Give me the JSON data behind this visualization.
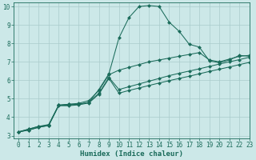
{
  "title": "",
  "xlabel": "Humidex (Indice chaleur)",
  "ylabel": "",
  "xlim": [
    -0.5,
    23
  ],
  "ylim": [
    2.85,
    10.2
  ],
  "xticks": [
    0,
    1,
    2,
    3,
    4,
    5,
    6,
    7,
    8,
    9,
    10,
    11,
    12,
    13,
    14,
    15,
    16,
    17,
    18,
    19,
    20,
    21,
    22,
    23
  ],
  "yticks": [
    3,
    4,
    5,
    6,
    7,
    8,
    9,
    10
  ],
  "background_color": "#cce8e8",
  "grid_color": "#aacccc",
  "line_color": "#1a6b5a",
  "lines": [
    {
      "x": [
        0,
        1,
        2,
        3,
        4,
        5,
        6,
        7,
        8,
        9,
        10,
        11,
        12,
        13,
        14,
        15,
        16,
        17,
        18,
        19,
        20,
        21,
        22,
        23
      ],
      "y": [
        3.2,
        3.35,
        3.5,
        3.55,
        4.65,
        4.7,
        4.7,
        4.8,
        5.5,
        6.35,
        8.3,
        9.4,
        10.0,
        10.05,
        10.0,
        9.15,
        8.65,
        7.95,
        7.8,
        7.05,
        6.95,
        7.1,
        7.35,
        7.3
      ],
      "marker": "D",
      "markersize": 2.0
    },
    {
      "x": [
        0,
        1,
        2,
        3,
        4,
        5,
        6,
        7,
        8,
        9,
        10,
        11,
        12,
        13,
        14,
        15,
        16,
        17,
        18,
        19,
        20,
        21,
        22,
        23
      ],
      "y": [
        3.2,
        3.35,
        3.5,
        3.6,
        4.65,
        4.7,
        4.75,
        4.9,
        5.45,
        6.3,
        6.55,
        6.7,
        6.85,
        7.0,
        7.1,
        7.2,
        7.3,
        7.4,
        7.5,
        7.1,
        7.0,
        7.15,
        7.3,
        7.35
      ],
      "marker": "D",
      "markersize": 2.0
    },
    {
      "x": [
        0,
        1,
        2,
        3,
        4,
        5,
        6,
        7,
        8,
        9,
        10,
        11,
        12,
        13,
        14,
        15,
        16,
        17,
        18,
        19,
        20,
        21,
        22,
        23
      ],
      "y": [
        3.2,
        3.3,
        3.45,
        3.55,
        4.65,
        4.65,
        4.7,
        4.8,
        5.3,
        6.15,
        5.5,
        5.65,
        5.8,
        5.95,
        6.1,
        6.25,
        6.38,
        6.5,
        6.62,
        6.75,
        6.88,
        7.0,
        7.12,
        7.25
      ],
      "marker": "D",
      "markersize": 2.0
    },
    {
      "x": [
        0,
        1,
        2,
        3,
        4,
        5,
        6,
        7,
        8,
        9,
        10,
        11,
        12,
        13,
        14,
        15,
        16,
        17,
        18,
        19,
        20,
        21,
        22,
        23
      ],
      "y": [
        3.2,
        3.3,
        3.45,
        3.55,
        4.62,
        4.62,
        4.67,
        4.77,
        5.25,
        6.1,
        5.3,
        5.45,
        5.58,
        5.72,
        5.85,
        5.98,
        6.1,
        6.22,
        6.35,
        6.48,
        6.6,
        6.72,
        6.85,
        6.97
      ],
      "marker": "D",
      "markersize": 2.0
    }
  ],
  "figsize": [
    3.2,
    2.0
  ],
  "dpi": 100,
  "tick_fontsize": 5.5,
  "label_fontsize": 6.5
}
